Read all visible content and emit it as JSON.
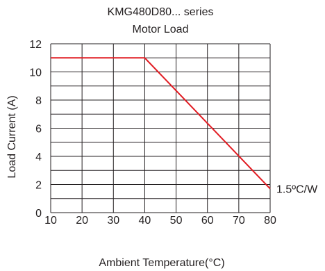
{
  "chart_data": {
    "type": "line",
    "title": "KMG480D80... series",
    "subtitle": "Motor Load",
    "xlabel": "Ambient Temperature(°C)",
    "ylabel": "Load Current (A)",
    "xlim": [
      10,
      80
    ],
    "ylim": [
      0,
      12
    ],
    "x_ticks": [
      "10",
      "20",
      "30",
      "40",
      "50",
      "60",
      "70",
      "80"
    ],
    "y_ticks": [
      "0",
      "2",
      "4",
      "6",
      "8",
      "10",
      "12"
    ],
    "grid": true,
    "grid_minor_y_step": 1,
    "series": [
      {
        "color": "#e11b22",
        "points": [
          [
            10,
            11
          ],
          [
            40,
            11
          ],
          [
            80,
            1.7
          ]
        ]
      }
    ],
    "annotations": [
      {
        "text": "1.5ºC/W",
        "x": 80,
        "y": 1.7
      }
    ]
  }
}
